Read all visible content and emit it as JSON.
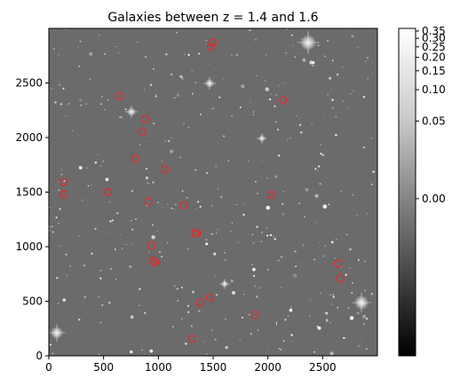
{
  "chart_data": {
    "type": "scatter",
    "title": "Galaxies between z = 1.4 and 1.6",
    "xlabel": "",
    "ylabel": "",
    "xlim": [
      0,
      3000
    ],
    "ylim": [
      0,
      3000
    ],
    "x_ticks": [
      0,
      500,
      1000,
      1500,
      2000,
      2500
    ],
    "y_ticks": [
      0,
      500,
      1000,
      1500,
      2000,
      2500
    ],
    "grid": false,
    "background": "grayscale astronomical image (galaxy field)",
    "marker": {
      "shape": "open-circle",
      "color": "#e8282b"
    },
    "points": [
      {
        "x": 1495,
        "y": 2870
      },
      {
        "x": 1480,
        "y": 2830
      },
      {
        "x": 640,
        "y": 2380
      },
      {
        "x": 2140,
        "y": 2340
      },
      {
        "x": 880,
        "y": 2170
      },
      {
        "x": 855,
        "y": 2055
      },
      {
        "x": 790,
        "y": 1810
      },
      {
        "x": 1060,
        "y": 1710
      },
      {
        "x": 135,
        "y": 1590
      },
      {
        "x": 135,
        "y": 1480
      },
      {
        "x": 540,
        "y": 1500
      },
      {
        "x": 2030,
        "y": 1475
      },
      {
        "x": 910,
        "y": 1415
      },
      {
        "x": 1235,
        "y": 1380
      },
      {
        "x": 1335,
        "y": 1125
      },
      {
        "x": 1350,
        "y": 1125
      },
      {
        "x": 940,
        "y": 1010
      },
      {
        "x": 955,
        "y": 870
      },
      {
        "x": 970,
        "y": 855
      },
      {
        "x": 2640,
        "y": 845
      },
      {
        "x": 2660,
        "y": 710
      },
      {
        "x": 1470,
        "y": 535
      },
      {
        "x": 1380,
        "y": 490
      },
      {
        "x": 1880,
        "y": 375
      },
      {
        "x": 1310,
        "y": 155
      }
    ],
    "colorbar": {
      "tick_labels": [
        "0.35",
        "0.30",
        "0.25",
        "0.20",
        "0.15",
        "0.10",
        "0.05",
        "0.00"
      ],
      "colormap": "gray"
    }
  }
}
